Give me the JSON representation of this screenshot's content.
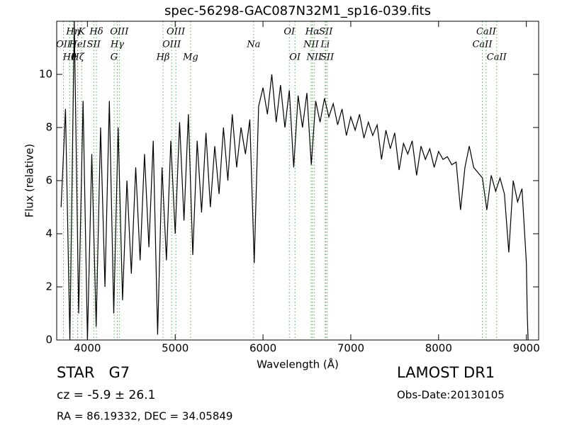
{
  "chart_data": {
    "type": "line",
    "title": "spec-56298-GAC087N32M1_sp16-039.fits",
    "x_label": "Wavelength (Å)",
    "y_label": "Flux (relative)",
    "xlim": [
      3650,
      9140
    ],
    "ylim": [
      0,
      12
    ],
    "xticks": [
      4000,
      5000,
      6000,
      7000,
      8000,
      9000
    ],
    "yticks": [
      0,
      2,
      4,
      6,
      8,
      10
    ],
    "series": [
      {
        "color": "#000000",
        "x": [
          3700,
          3750,
          3800,
          3850,
          3900,
          3950,
          4000,
          4050,
          4100,
          4150,
          4200,
          4250,
          4300,
          4350,
          4400,
          4450,
          4500,
          4550,
          4600,
          4650,
          4700,
          4750,
          4800,
          4850,
          4900,
          4950,
          5000,
          5050,
          5100,
          5150,
          5200,
          5250,
          5300,
          5350,
          5400,
          5450,
          5500,
          5550,
          5600,
          5650,
          5700,
          5750,
          5800,
          5850,
          5900,
          5950,
          6000,
          6050,
          6100,
          6150,
          6200,
          6250,
          6300,
          6350,
          6400,
          6450,
          6500,
          6550,
          6600,
          6650,
          6700,
          6750,
          6800,
          6850,
          6900,
          6950,
          7000,
          7050,
          7100,
          7150,
          7200,
          7250,
          7300,
          7350,
          7400,
          7450,
          7500,
          7550,
          7600,
          7650,
          7700,
          7750,
          7800,
          7850,
          7900,
          7950,
          8000,
          8050,
          8100,
          8150,
          8200,
          8250,
          8300,
          8350,
          8400,
          8450,
          8500,
          8550,
          8600,
          8650,
          8700,
          8750,
          8800,
          8850,
          8900,
          8950,
          9000,
          9010,
          9020
        ],
        "values": [
          5,
          8.7,
          0,
          12,
          1,
          9,
          0,
          7,
          0.5,
          8,
          2,
          9,
          1,
          8,
          1.5,
          6,
          2.5,
          6.5,
          3,
          7,
          3.5,
          7.5,
          0.2,
          6.5,
          3,
          7.5,
          4,
          8.2,
          4.5,
          8.5,
          3.2,
          7.5,
          4.8,
          7.8,
          5,
          7.3,
          5.5,
          8,
          6,
          8.5,
          6.5,
          8,
          7,
          8.3,
          2.9,
          8.8,
          9.5,
          8.5,
          10,
          8.2,
          9.6,
          8,
          9.4,
          6.5,
          9.2,
          8,
          9.3,
          6.6,
          9,
          8.2,
          9.1,
          8.4,
          8.9,
          8.1,
          8.7,
          7.7,
          8.4,
          7.9,
          8.5,
          7.6,
          8.2,
          7.7,
          8.1,
          6.8,
          7.9,
          7.2,
          7.8,
          6.4,
          7.4,
          7,
          7.5,
          6.2,
          7.3,
          6.8,
          7.2,
          6.5,
          7.1,
          6.8,
          6.9,
          6.6,
          6.7,
          4.9,
          6.5,
          7.3,
          6.5,
          6.3,
          6.1,
          4.9,
          6.2,
          5.6,
          6.1,
          5.5,
          3.3,
          6,
          5.2,
          5.7,
          2.9,
          1,
          0
        ]
      }
    ],
    "line_color": "#5aa85a",
    "line_labels": [
      [
        {
          "label": "Hη",
          "wavelength": 3835
        },
        {
          "label": "K",
          "wavelength": 3934
        },
        {
          "label": "Hδ",
          "wavelength": 4102
        },
        {
          "label": "OIII",
          "wavelength": 4363
        },
        {
          "label": "OIII",
          "wavelength": 5007
        },
        {
          "label": "OI",
          "wavelength": 6300
        },
        {
          "label": "Hα",
          "wavelength": 6563
        },
        {
          "label": "SII",
          "wavelength": 6716
        },
        {
          "label": "CaII",
          "wavelength": 8542
        }
      ],
      [
        {
          "label": "OII",
          "wavelength": 3727
        },
        {
          "label": "HeI",
          "wavelength": 3889
        },
        {
          "label": "SII",
          "wavelength": 4072
        },
        {
          "label": "Hγ",
          "wavelength": 4340
        },
        {
          "label": "OIII",
          "wavelength": 4959
        },
        {
          "label": "Na",
          "wavelength": 5893
        },
        {
          "label": "NII",
          "wavelength": 6548
        },
        {
          "label": "Li",
          "wavelength": 6708
        },
        {
          "label": "CaII",
          "wavelength": 8498
        }
      ],
      [
        {
          "label": "Hθ",
          "wavelength": 3798
        },
        {
          "label": "Hζ",
          "wavelength": 3889
        },
        {
          "label": "G",
          "wavelength": 4304
        },
        {
          "label": "Hβ",
          "wavelength": 4861
        },
        {
          "label": "Mg",
          "wavelength": 5175
        },
        {
          "label": "OI",
          "wavelength": 6364
        },
        {
          "label": "NII",
          "wavelength": 6583
        },
        {
          "label": "SII",
          "wavelength": 6731
        },
        {
          "label": "CaII",
          "wavelength": 8662
        }
      ]
    ],
    "info": {
      "class": "STAR   G7",
      "cz": "cz = -5.9 ± 26.1",
      "coords": "RA = 86.19332, DEC = 34.05849",
      "survey": "LAMOST DR1",
      "date": "Obs-Date:20130105"
    }
  }
}
